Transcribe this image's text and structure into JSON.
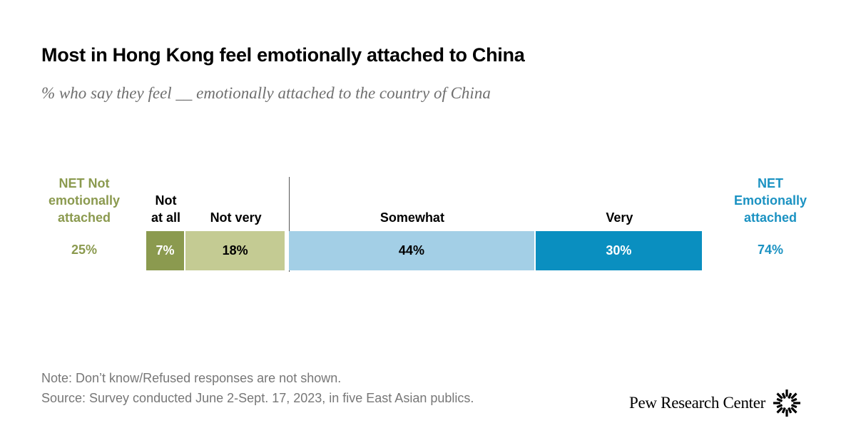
{
  "title": "Most in Hong Kong feel emotionally attached to China",
  "subtitle": "% who say they feel __ emotionally attached to the country of China",
  "chart_data": {
    "type": "bar",
    "orientation": "horizontal-stacked",
    "segments": [
      {
        "label": "Not at all",
        "header_lines": [
          "Not",
          "at all"
        ],
        "value": 7,
        "display": "7%",
        "color": "#8b9a4f",
        "text_color": "#ffffff"
      },
      {
        "label": "Not very",
        "header_lines": [
          "Not very"
        ],
        "value": 18,
        "display": "18%",
        "color": "#c4cb93",
        "text_color": "#000000"
      },
      {
        "label": "Somewhat",
        "header_lines": [
          "Somewhat"
        ],
        "value": 44,
        "display": "44%",
        "color": "#a3cfe6",
        "text_color": "#000000"
      },
      {
        "label": "Very",
        "header_lines": [
          "Very"
        ],
        "value": 30,
        "display": "30%",
        "color": "#0a8fc0",
        "text_color": "#ffffff"
      }
    ],
    "net_left": {
      "header_lines": [
        "NET Not",
        "emotionally",
        "attached"
      ],
      "value": 25,
      "display": "25%",
      "color": "#8b9a4f"
    },
    "net_right": {
      "header_lines": [
        "NET",
        "Emotionally",
        "attached"
      ],
      "value": 74,
      "display": "74%",
      "color": "#1b92c2"
    }
  },
  "note": "Note: Don’t know/Refused responses are not shown.",
  "source": "Source: Survey conducted June 2-Sept. 17, 2023, in five East Asian publics.",
  "logo": {
    "text": "Pew Research Center",
    "icon": "pew-sunburst-icon"
  }
}
